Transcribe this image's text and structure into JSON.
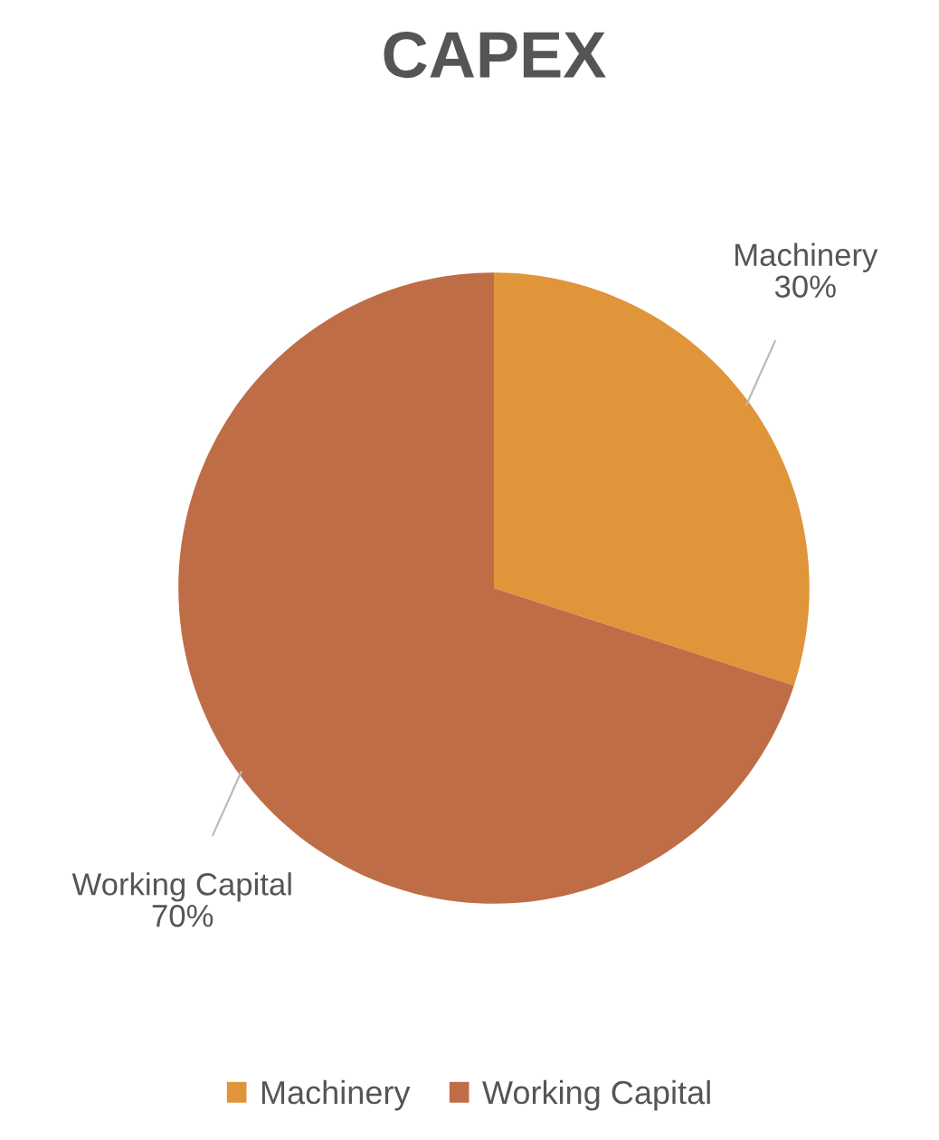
{
  "chart_data": {
    "type": "pie",
    "title": "CAPEX",
    "categories": [
      "Machinery",
      "Working Capital"
    ],
    "values": [
      30,
      70
    ],
    "colors": [
      "#e0953a",
      "#bf6d47"
    ],
    "value_labels": [
      "30%",
      "70%"
    ],
    "legend": "bottom"
  }
}
